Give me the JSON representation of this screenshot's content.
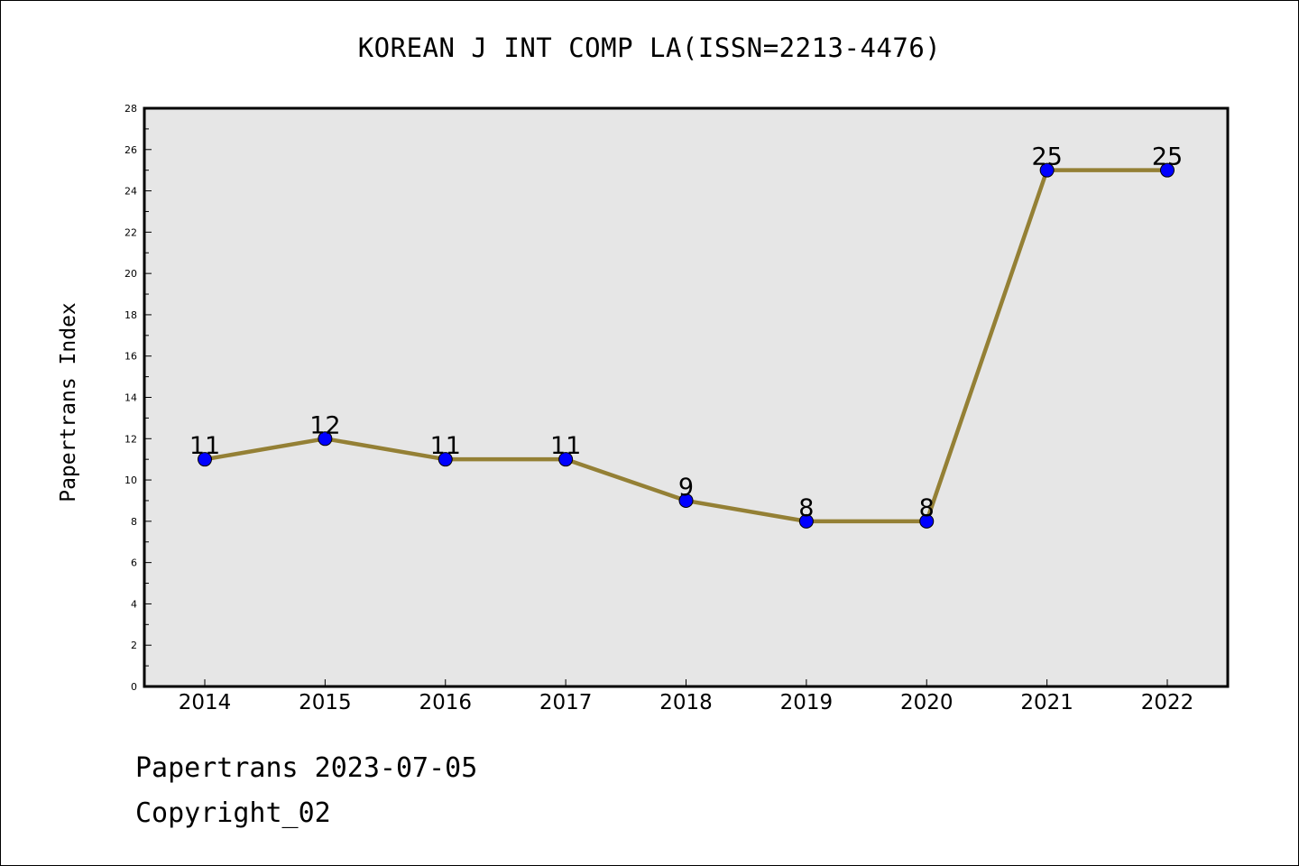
{
  "chart_data": {
    "type": "line",
    "title": "KOREAN J INT COMP LA(ISSN=2213-4476)",
    "xlabel": "",
    "ylabel": "Papertrans Index",
    "categories": [
      "2014",
      "2015",
      "2016",
      "2017",
      "2018",
      "2019",
      "2020",
      "2021",
      "2022"
    ],
    "series": [
      {
        "values": [
          11,
          12,
          11,
          11,
          9,
          8,
          8,
          25,
          25
        ]
      }
    ],
    "data_labels": [
      "11",
      "12",
      "11",
      "11",
      "9",
      "8",
      "8",
      "25",
      "25"
    ],
    "ylim": [
      0,
      28
    ],
    "yticks": [
      "0",
      "2",
      "4",
      "6",
      "8",
      "10",
      "12",
      "14",
      "16",
      "18",
      "20",
      "22",
      "24",
      "26",
      "28"
    ],
    "grid": false,
    "legend": "none",
    "colors": {
      "line": "#948035",
      "marker": "#0000ff",
      "marker_edge": "#000000",
      "plot_background": "#e6e6e6"
    }
  },
  "footer": {
    "line1": "Papertrans 2023-07-05",
    "line2": "Copyright_02"
  }
}
